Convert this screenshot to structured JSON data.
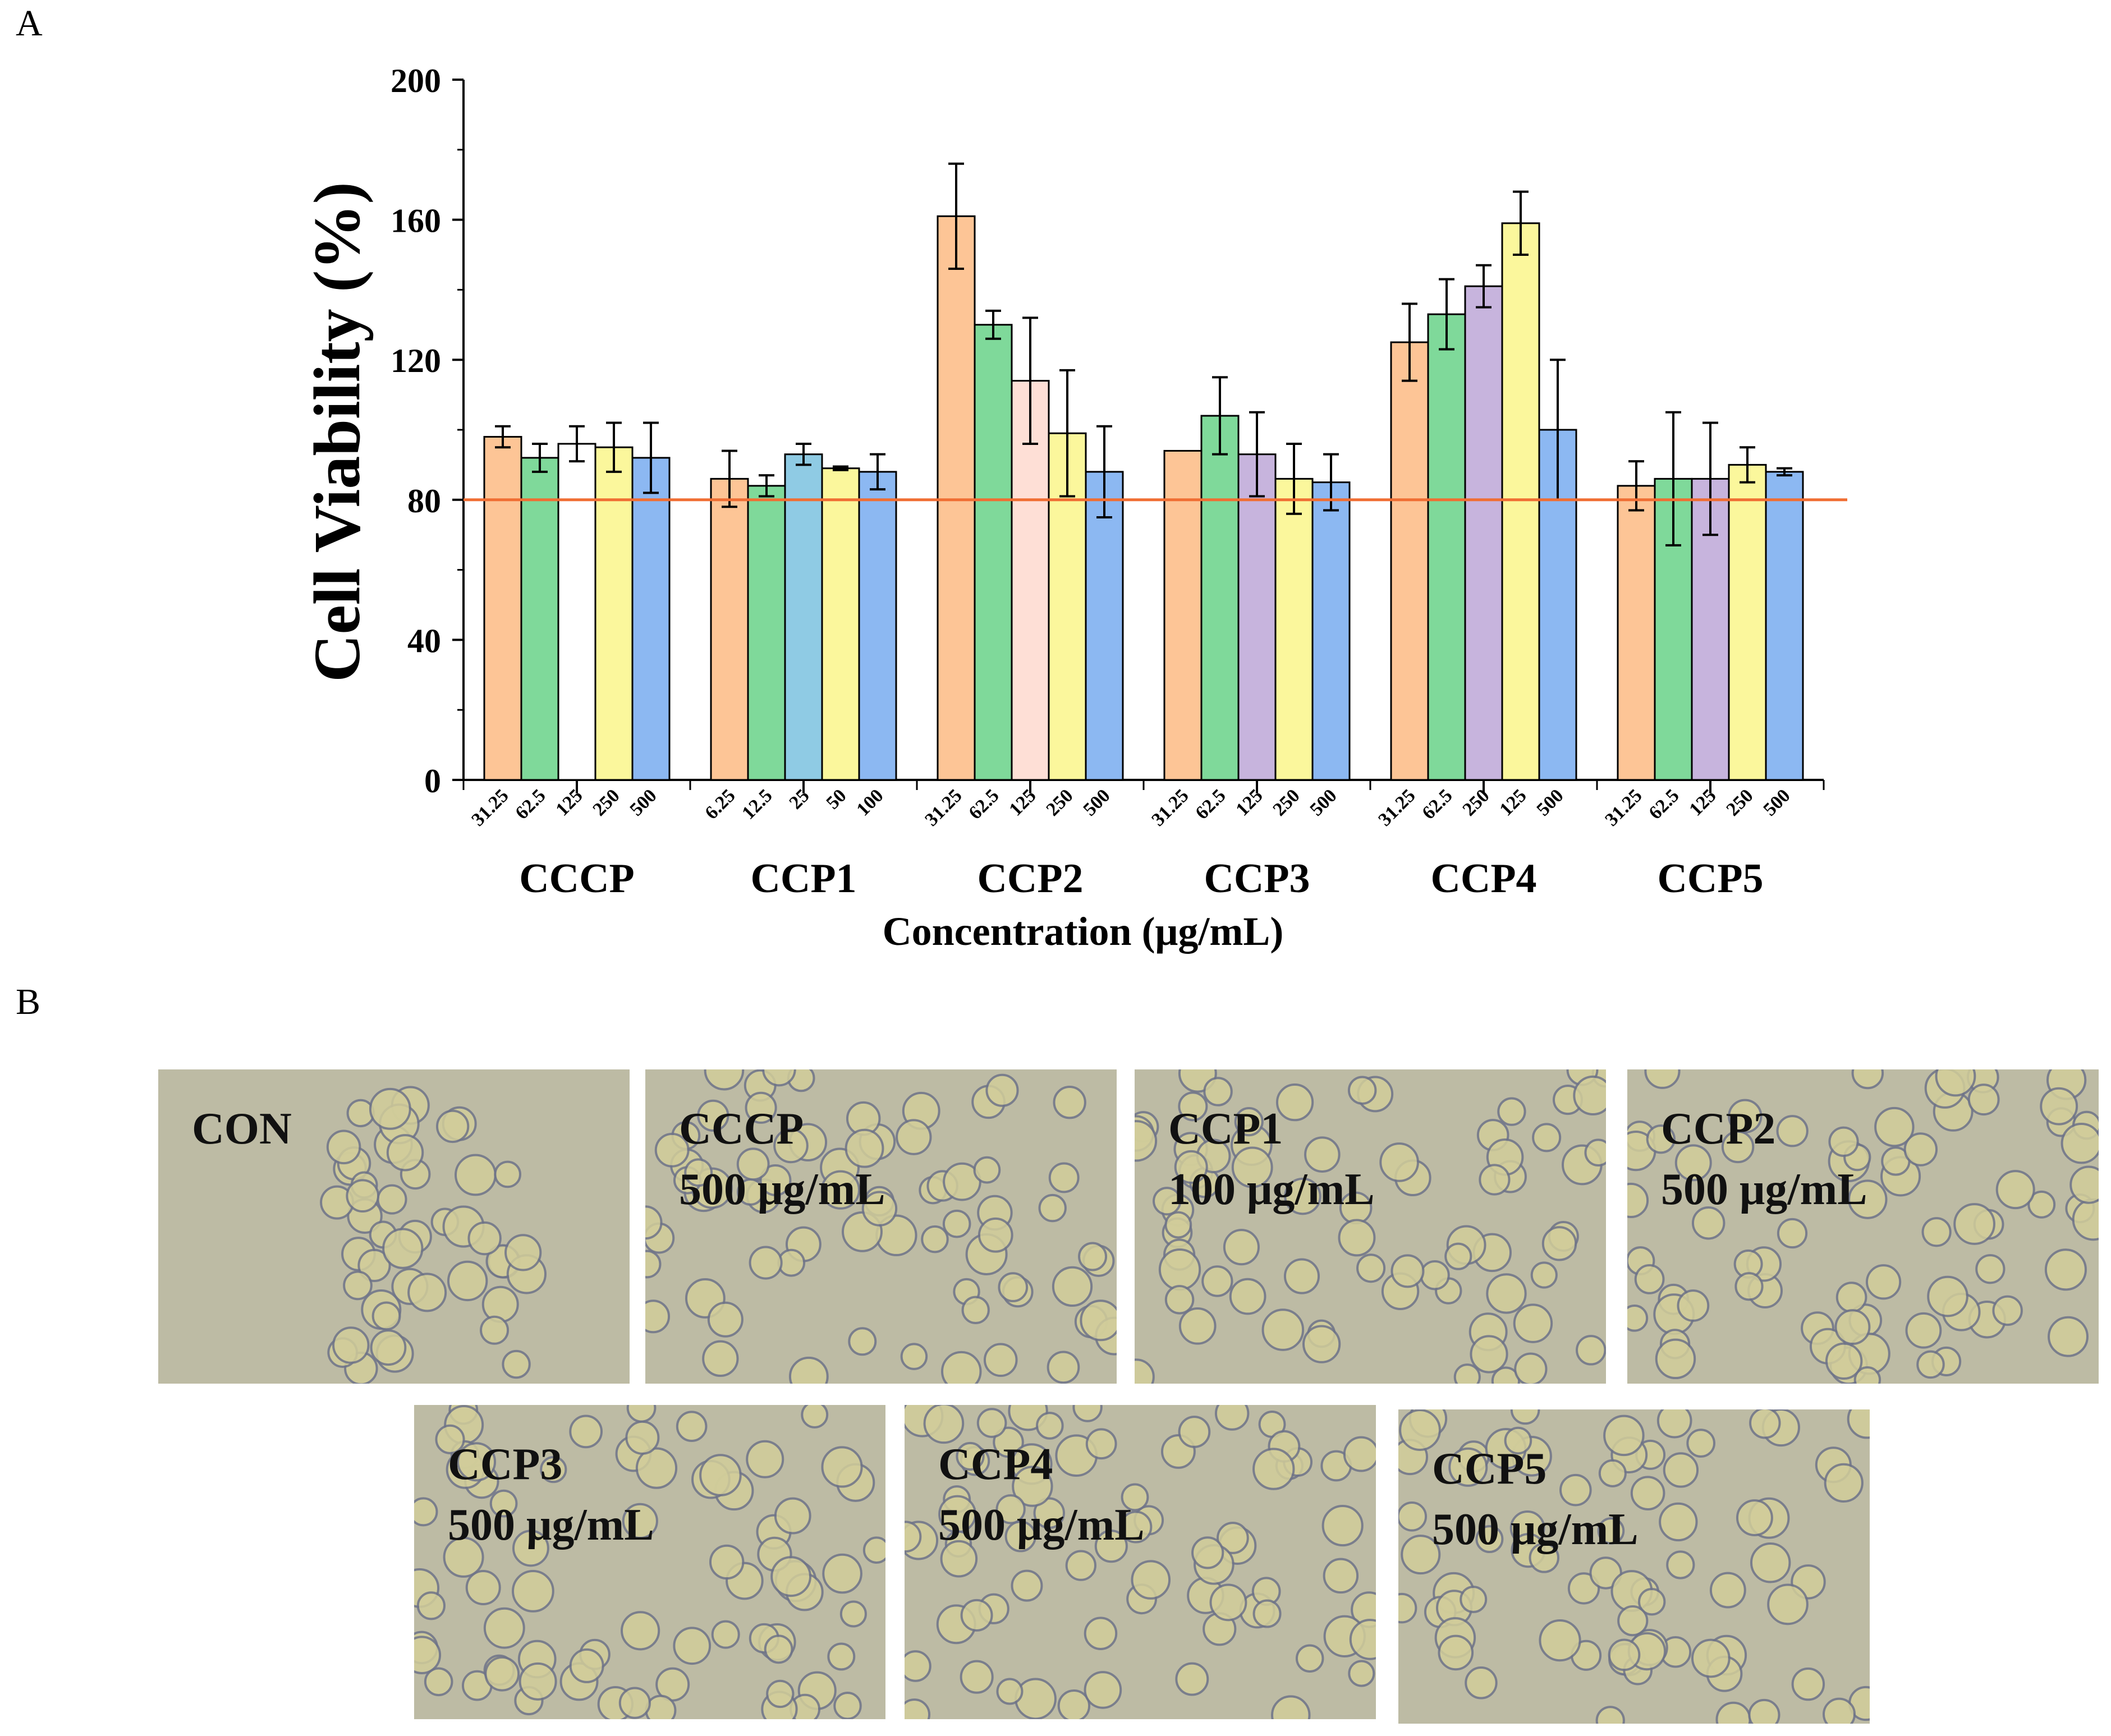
{
  "panel_labels": {
    "a": "A",
    "b": "B"
  },
  "chart_data": {
    "type": "bar",
    "title": "",
    "xlabel": "Concentration (μg/mL)",
    "ylabel": "Cell Viability (%)",
    "ylim": [
      0,
      200
    ],
    "yticks": [
      0,
      40,
      80,
      120,
      160,
      200
    ],
    "reference_line": {
      "y": 80,
      "color": "#f06e33"
    },
    "groups": [
      {
        "name": "CCCP",
        "bars": [
          {
            "label": "31.25",
            "value": 98,
            "error": 3,
            "color": "#fdc596"
          },
          {
            "label": "62.5",
            "value": 92,
            "error": 4,
            "color": "#7fd99a"
          },
          {
            "label": "125",
            "value": 96,
            "error": 5,
            "color": "#ffffff"
          },
          {
            "label": "250",
            "value": 95,
            "error": 7,
            "color": "#fbf79c"
          },
          {
            "label": "500",
            "value": 92,
            "error": 10,
            "color": "#8cb8f2"
          }
        ]
      },
      {
        "name": "CCP1",
        "bars": [
          {
            "label": "6.25",
            "value": 86,
            "error": 8,
            "color": "#fdc596"
          },
          {
            "label": "12.5",
            "value": 84,
            "error": 3,
            "color": "#7fd99a"
          },
          {
            "label": "25",
            "value": 93,
            "error": 3,
            "color": "#8fcbe4"
          },
          {
            "label": "50",
            "value": 89,
            "error": 0.5,
            "color": "#fbf79c"
          },
          {
            "label": "100",
            "value": 88,
            "error": 5,
            "color": "#8cb8f2"
          }
        ]
      },
      {
        "name": "CCP2",
        "bars": [
          {
            "label": "31.25",
            "value": 161,
            "error": 15,
            "color": "#fdc596"
          },
          {
            "label": "62.5",
            "value": 130,
            "error": 4,
            "color": "#7fd99a"
          },
          {
            "label": "125",
            "value": 114,
            "error": 18,
            "color": "#fedfd6"
          },
          {
            "label": "250",
            "value": 99,
            "error": 18,
            "color": "#fbf79c"
          },
          {
            "label": "500",
            "value": 88,
            "error": 13,
            "color": "#8cb8f2"
          }
        ]
      },
      {
        "name": "CCP3",
        "bars": [
          {
            "label": "31.25",
            "value": 94,
            "error": 0,
            "color": "#fdc596"
          },
          {
            "label": "62.5",
            "value": 104,
            "error": 11,
            "color": "#7fd99a"
          },
          {
            "label": "125",
            "value": 93,
            "error": 12,
            "color": "#c7b4dd"
          },
          {
            "label": "250",
            "value": 86,
            "error": 10,
            "color": "#fbf79c"
          },
          {
            "label": "500",
            "value": 85,
            "error": 8,
            "color": "#8cb8f2"
          }
        ]
      },
      {
        "name": "CCP4",
        "bars": [
          {
            "label": "31.25",
            "value": 125,
            "error": 11,
            "color": "#fdc596"
          },
          {
            "label": "62.5",
            "value": 133,
            "error": 10,
            "color": "#7fd99a"
          },
          {
            "label": "250",
            "value": 141,
            "error": 6,
            "color": "#c7b4dd"
          },
          {
            "label": "125",
            "value": 159,
            "error": 9,
            "color": "#fbf79c"
          },
          {
            "label": "500",
            "value": 100,
            "error": 20,
            "color": "#8cb8f2"
          }
        ]
      },
      {
        "name": "CCP5",
        "bars": [
          {
            "label": "31.25",
            "value": 84,
            "error": 7,
            "color": "#fdc596"
          },
          {
            "label": "62.5",
            "value": 86,
            "error": 19,
            "color": "#7fd99a"
          },
          {
            "label": "125",
            "value": 86,
            "error": 16,
            "color": "#c7b4dd"
          },
          {
            "label": "250",
            "value": 90,
            "error": 5,
            "color": "#fbf79c"
          },
          {
            "label": "500",
            "value": 88,
            "error": 1,
            "color": "#8cb8f2"
          }
        ]
      }
    ]
  },
  "micrographs": [
    {
      "name": "CON",
      "concentration": ""
    },
    {
      "name": "CCCP",
      "concentration": "500 μg/mL"
    },
    {
      "name": "CCP1",
      "concentration": "100 μg/mL"
    },
    {
      "name": "CCP2",
      "concentration": "500 μg/mL"
    },
    {
      "name": "CCP3",
      "concentration": "500 μg/mL"
    },
    {
      "name": "CCP4",
      "concentration": "500 μg/mL"
    },
    {
      "name": "CCP5",
      "concentration": "500 μg/mL"
    }
  ]
}
